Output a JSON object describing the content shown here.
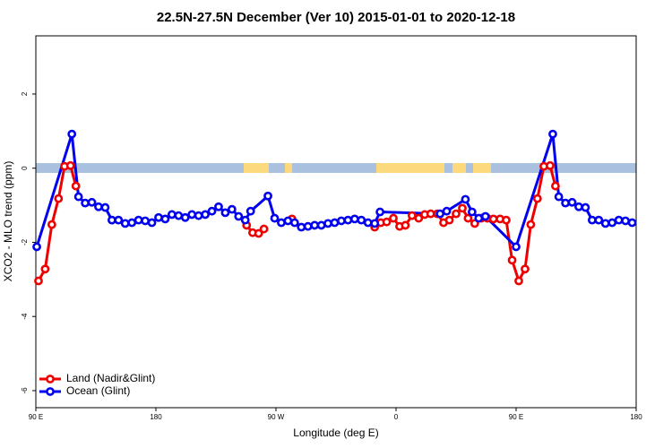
{
  "chart_data": {
    "type": "line",
    "title": "22.5N-27.5N December (Ver 10)   2015-01-01 to 2020-12-18",
    "x_label": "Longitude (deg E)",
    "y_label": "XCO2 - MLO trend (ppm)",
    "xlim": [
      90,
      540
    ],
    "ylim": [
      -6.46,
      3.57
    ],
    "xticks": [
      {
        "value": 90,
        "label": "90 E"
      },
      180,
      {
        "value": 270,
        "label": "90 W"
      },
      {
        "value": 360,
        "label": "0"
      },
      {
        "value": 450,
        "label": "90 E"
      },
      {
        "value": 540,
        "label": "180"
      }
    ],
    "yticks": [
      -6,
      -4,
      -2,
      0,
      2
    ],
    "legend": "bottom-left",
    "series": [
      {
        "name": "Land (Nadir&Glint)",
        "color": "#ee0000",
        "x": [
          92,
          97,
          102,
          107,
          111.5,
          116,
          120,
          null,
          248,
          252.5,
          257,
          261,
          null,
          282,
          null,
          344,
          348.6,
          353,
          358,
          362.7,
          367,
          372,
          377,
          381.5,
          386,
          391,
          395.6,
          400,
          405,
          409.7,
          414,
          419,
          424,
          428.5,
          433,
          438,
          442.6,
          447,
          452,
          456.7,
          461,
          466,
          470.8,
          475.5,
          479.5
        ],
        "values": [
          -3.04,
          -2.72,
          -1.52,
          -0.82,
          0.05,
          0.07,
          -0.48,
          null,
          -1.54,
          -1.74,
          -1.76,
          -1.64,
          null,
          -1.37,
          null,
          -1.59,
          -1.47,
          -1.45,
          -1.35,
          -1.57,
          -1.54,
          -1.28,
          -1.35,
          -1.25,
          -1.23,
          -1.23,
          -1.47,
          -1.4,
          -1.23,
          -1.08,
          -1.35,
          -1.49,
          -1.35,
          -1.35,
          -1.37,
          -1.37,
          -1.4,
          -2.48,
          -3.04,
          -2.72,
          -1.52,
          -0.82,
          0.05,
          0.07,
          -0.48
        ]
      },
      {
        "name": "Ocean (Glint)",
        "color": "#0000ee",
        "x": [
          90.7,
          117,
          122,
          127,
          132,
          137,
          142,
          147,
          152,
          157,
          162,
          167,
          172,
          177,
          182,
          187,
          192,
          197,
          202,
          207,
          212,
          217,
          222,
          227,
          232,
          237,
          242,
          247,
          251,
          264,
          269,
          274,
          279,
          284,
          289,
          294,
          299,
          304,
          309,
          314,
          319,
          324,
          329,
          334,
          339,
          344,
          348,
          393,
          398,
          412,
          417,
          422,
          427,
          450,
          477.5,
          482,
          487,
          492,
          497,
          502,
          507,
          512,
          517,
          522,
          527,
          532,
          537
        ],
        "values": [
          -2.12,
          0.92,
          -0.77,
          -0.94,
          -0.92,
          -1.04,
          -1.06,
          -1.4,
          -1.4,
          -1.49,
          -1.47,
          -1.4,
          -1.42,
          -1.47,
          -1.33,
          -1.37,
          -1.25,
          -1.28,
          -1.33,
          -1.25,
          -1.28,
          -1.25,
          -1.16,
          -1.04,
          -1.2,
          -1.11,
          -1.3,
          -1.4,
          -1.16,
          -0.75,
          -1.35,
          -1.47,
          -1.42,
          -1.47,
          -1.59,
          -1.57,
          -1.54,
          -1.54,
          -1.49,
          -1.47,
          -1.42,
          -1.4,
          -1.37,
          -1.4,
          -1.47,
          -1.49,
          -1.18,
          -1.23,
          -1.16,
          -0.84,
          -1.18,
          -1.35,
          -1.3,
          -2.12,
          0.92,
          -0.77,
          -0.94,
          -0.92,
          -1.04,
          -1.06,
          -1.4,
          -1.4,
          -1.49,
          -1.47,
          -1.4,
          -1.42,
          -1.47
        ]
      }
    ]
  }
}
